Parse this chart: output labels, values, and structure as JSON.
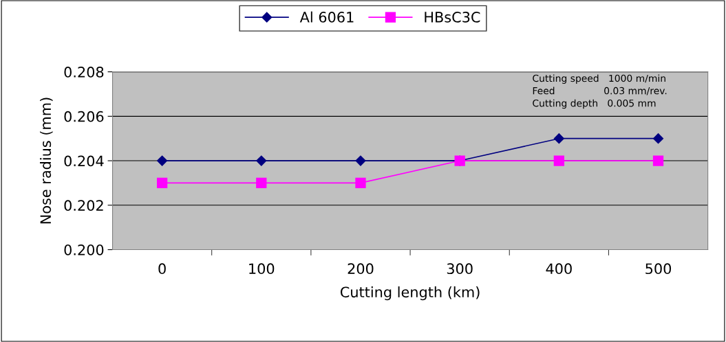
{
  "chart_data": {
    "type": "line",
    "xlabel": "Cutting length (km)",
    "ylabel": "Nose radius (mm)",
    "categories": [
      "0",
      "100",
      "200",
      "300",
      "400",
      "500"
    ],
    "series": [
      {
        "name": "Al 6061",
        "color": "#000080",
        "marker": "diamond",
        "values": [
          0.204,
          0.204,
          0.204,
          0.204,
          0.205,
          0.205
        ]
      },
      {
        "name": "HBsC3C",
        "color": "#ff00ff",
        "marker": "square",
        "values": [
          0.203,
          0.203,
          0.203,
          0.204,
          0.204,
          0.204
        ]
      }
    ],
    "ylim": [
      0.2,
      0.208
    ],
    "yticks": [
      {
        "value": 0.2,
        "label": "0.200"
      },
      {
        "value": 0.202,
        "label": "0.202"
      },
      {
        "value": 0.204,
        "label": "0.204"
      },
      {
        "value": 0.206,
        "label": "0.206"
      },
      {
        "value": 0.208,
        "label": "0.208"
      }
    ],
    "grid": "y",
    "legend": "top",
    "annotations": [
      "Cutting speed   1000 m/min",
      "Feed                0.03 mm/rev.",
      "Cutting depth   0.005 mm"
    ]
  }
}
